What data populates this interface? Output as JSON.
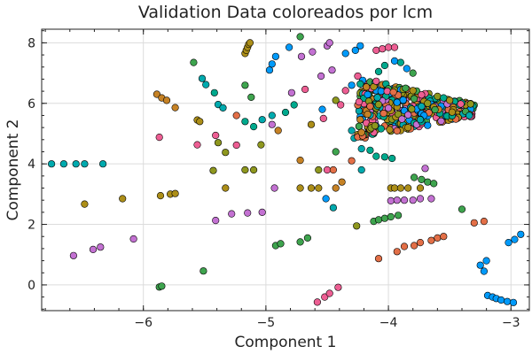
{
  "chart_data": {
    "type": "scatter",
    "title": "Validation Data coloreados por lcm",
    "xlabel": "Component 1",
    "ylabel": "Component 2",
    "xlim": [
      -6.83,
      -2.85
    ],
    "ylim": [
      -0.85,
      8.45
    ],
    "xticks": [
      -6,
      -5,
      -4,
      -3
    ],
    "yticks": [
      0,
      2,
      4,
      6,
      8
    ],
    "grid": true,
    "legend": "none",
    "palette": [
      "#009AFA",
      "#E36F47",
      "#3EA44E",
      "#C371D2",
      "#AC8E18",
      "#00AAAE",
      "#ED5E93",
      "#C68225",
      "#00A98D",
      "#8E971E"
    ],
    "points": [
      [
        -6.75,
        4.0,
        5
      ],
      [
        -6.65,
        4.0,
        5
      ],
      [
        -6.55,
        4.0,
        5
      ],
      [
        -6.48,
        4.0,
        5
      ],
      [
        -6.33,
        4.0,
        5
      ],
      [
        -6.57,
        0.97,
        3
      ],
      [
        -6.41,
        1.17,
        3
      ],
      [
        -6.35,
        1.25,
        3
      ],
      [
        -6.08,
        1.52,
        3
      ],
      [
        -6.48,
        2.67,
        4
      ],
      [
        -6.17,
        2.85,
        4
      ],
      [
        -5.89,
        6.3,
        7
      ],
      [
        -5.85,
        6.18,
        7
      ],
      [
        -5.81,
        6.1,
        7
      ],
      [
        -5.74,
        5.86,
        7
      ],
      [
        -5.87,
        4.88,
        6
      ],
      [
        -5.56,
        4.63,
        6
      ],
      [
        -5.86,
        2.95,
        4
      ],
      [
        -5.78,
        3.0,
        4
      ],
      [
        -5.74,
        3.02,
        4
      ],
      [
        -5.87,
        -0.07,
        2
      ],
      [
        -5.85,
        -0.04,
        2
      ],
      [
        -5.51,
        0.46,
        2
      ],
      [
        -5.59,
        7.35,
        2
      ],
      [
        -5.52,
        6.82,
        5
      ],
      [
        -5.49,
        6.62,
        5
      ],
      [
        -5.42,
        6.35,
        8
      ],
      [
        -5.56,
        5.45,
        4
      ],
      [
        -5.54,
        5.4,
        4
      ],
      [
        -5.39,
        5.96,
        5
      ],
      [
        -5.35,
        5.85,
        5
      ],
      [
        -5.41,
        4.94,
        6
      ],
      [
        -5.39,
        4.7,
        9
      ],
      [
        -5.33,
        4.38,
        9
      ],
      [
        -5.43,
        3.78,
        9
      ],
      [
        -5.33,
        3.2,
        4
      ],
      [
        -5.41,
        2.13,
        3
      ],
      [
        -5.28,
        2.35,
        3
      ],
      [
        -5.15,
        2.38,
        3
      ],
      [
        -5.03,
        2.4,
        3
      ],
      [
        -5.24,
        5.6,
        1
      ],
      [
        -5.17,
        5.4,
        8
      ],
      [
        -5.1,
        5.23,
        8
      ],
      [
        -5.24,
        4.62,
        6
      ],
      [
        -5.17,
        3.8,
        9
      ],
      [
        -5.1,
        3.8,
        9
      ],
      [
        -5.17,
        7.65,
        4
      ],
      [
        -5.16,
        7.75,
        4
      ],
      [
        -5.15,
        7.85,
        4
      ],
      [
        -5.14,
        7.95,
        4
      ],
      [
        -5.13,
        8.0,
        4
      ],
      [
        -5.17,
        6.6,
        2
      ],
      [
        -5.12,
        6.2,
        2
      ],
      [
        -5.03,
        5.46,
        5
      ],
      [
        -4.95,
        5.6,
        5
      ],
      [
        -4.95,
        5.3,
        3
      ],
      [
        -4.9,
        5.1,
        7
      ],
      [
        -5.04,
        4.63,
        9
      ],
      [
        -4.93,
        3.2,
        3
      ],
      [
        -4.92,
        1.3,
        2
      ],
      [
        -4.88,
        1.36,
        2
      ],
      [
        -4.97,
        7.1,
        0
      ],
      [
        -4.95,
        7.3,
        0
      ],
      [
        -4.92,
        7.55,
        0
      ],
      [
        -4.81,
        7.85,
        0
      ],
      [
        -4.72,
        8.2,
        2
      ],
      [
        -4.71,
        7.55,
        3
      ],
      [
        -4.84,
        5.7,
        8
      ],
      [
        -4.77,
        5.95,
        8
      ],
      [
        -4.72,
        4.12,
        7
      ],
      [
        -4.72,
        3.2,
        4
      ],
      [
        -4.63,
        3.2,
        4
      ],
      [
        -4.57,
        3.2,
        4
      ],
      [
        -4.72,
        1.42,
        2
      ],
      [
        -4.66,
        1.55,
        2
      ],
      [
        -4.79,
        6.35,
        3
      ],
      [
        -4.68,
        6.46,
        6
      ],
      [
        -4.63,
        5.3,
        4
      ],
      [
        -4.53,
        5.5,
        6
      ],
      [
        -4.62,
        7.7,
        3
      ],
      [
        -4.5,
        7.9,
        3
      ],
      [
        -4.48,
        8.0,
        3
      ],
      [
        -4.55,
        6.9,
        3
      ],
      [
        -4.46,
        7.1,
        3
      ],
      [
        -4.54,
        5.8,
        0
      ],
      [
        -4.43,
        6.1,
        9
      ],
      [
        -4.39,
        5.95,
        6
      ],
      [
        -4.57,
        3.8,
        9
      ],
      [
        -4.5,
        3.8,
        6
      ],
      [
        -4.45,
        3.8,
        1
      ],
      [
        -4.43,
        3.2,
        7
      ],
      [
        -4.38,
        3.4,
        7
      ],
      [
        -4.51,
        2.85,
        0
      ],
      [
        -4.45,
        2.55,
        5
      ],
      [
        -4.43,
        4.4,
        2
      ],
      [
        -4.58,
        -0.57,
        6
      ],
      [
        -4.52,
        -0.4,
        6
      ],
      [
        -4.48,
        -0.28,
        6
      ],
      [
        -4.41,
        -0.08,
        6
      ],
      [
        -4.35,
        6.42,
        6
      ],
      [
        -4.3,
        6.6,
        0
      ],
      [
        -4.35,
        7.65,
        0
      ],
      [
        -4.27,
        7.75,
        0
      ],
      [
        -4.23,
        7.9,
        0
      ],
      [
        -4.25,
        6.9,
        6
      ],
      [
        -4.3,
        5.1,
        5
      ],
      [
        -4.28,
        4.85,
        5
      ],
      [
        -4.23,
        5.5,
        1
      ],
      [
        -4.22,
        4.5,
        5
      ],
      [
        -4.26,
        1.95,
        9
      ],
      [
        -4.3,
        4.1,
        1
      ],
      [
        -4.22,
        3.8,
        5
      ],
      [
        -4.17,
        6.5,
        0
      ],
      [
        -4.15,
        6.2,
        3
      ],
      [
        -4.12,
        6.1,
        4
      ],
      [
        -4.14,
        5.55,
        1
      ],
      [
        -4.12,
        5.3,
        6
      ],
      [
        -4.15,
        4.45,
        8
      ],
      [
        -4.1,
        4.25,
        8
      ],
      [
        -4.03,
        4.23,
        8
      ],
      [
        -3.97,
        4.18,
        8
      ],
      [
        -4.12,
        2.1,
        2
      ],
      [
        -4.08,
        2.15,
        2
      ],
      [
        -4.03,
        2.2,
        2
      ],
      [
        -3.98,
        2.25,
        2
      ],
      [
        -3.92,
        2.3,
        2
      ],
      [
        -4.08,
        7.05,
        8
      ],
      [
        -4.03,
        7.25,
        8
      ],
      [
        -4.1,
        7.75,
        6
      ],
      [
        -4.05,
        7.8,
        6
      ],
      [
        -4.0,
        7.85,
        6
      ],
      [
        -3.95,
        7.85,
        6
      ],
      [
        -3.98,
        3.2,
        4
      ],
      [
        -3.95,
        3.2,
        4
      ],
      [
        -3.9,
        3.2,
        4
      ],
      [
        -3.84,
        3.2,
        4
      ],
      [
        -3.74,
        3.2,
        4
      ],
      [
        -3.98,
        2.78,
        3
      ],
      [
        -3.93,
        2.8,
        3
      ],
      [
        -3.87,
        2.8,
        3
      ],
      [
        -3.8,
        2.8,
        3
      ],
      [
        -3.74,
        2.85,
        3
      ],
      [
        -3.79,
        3.55,
        2
      ],
      [
        -3.73,
        3.48,
        2
      ],
      [
        -3.68,
        3.4,
        2
      ],
      [
        -3.63,
        3.35,
        2
      ],
      [
        -4.08,
        0.87,
        1
      ],
      [
        -3.93,
        1.1,
        1
      ],
      [
        -3.87,
        1.27,
        1
      ],
      [
        -3.79,
        1.3,
        1
      ],
      [
        -3.74,
        1.4,
        1
      ],
      [
        -3.65,
        1.47,
        1
      ],
      [
        -3.6,
        1.55,
        1
      ],
      [
        -3.55,
        1.6,
        1
      ],
      [
        -3.95,
        7.4,
        0
      ],
      [
        -3.9,
        7.35,
        8
      ],
      [
        -3.85,
        7.15,
        0
      ],
      [
        -3.8,
        7.0,
        2
      ],
      [
        -3.7,
        3.85,
        3
      ],
      [
        -3.65,
        2.85,
        3
      ],
      [
        -3.4,
        2.5,
        2
      ],
      [
        -3.3,
        2.05,
        1
      ],
      [
        -3.22,
        2.1,
        1
      ],
      [
        -3.25,
        0.65,
        0
      ],
      [
        -3.2,
        0.8,
        0
      ],
      [
        -3.22,
        0.45,
        0
      ],
      [
        -3.19,
        -0.35,
        0
      ],
      [
        -3.15,
        -0.4,
        0
      ],
      [
        -3.12,
        -0.45,
        0
      ],
      [
        -3.08,
        -0.5,
        0
      ],
      [
        -3.03,
        -0.55,
        0
      ],
      [
        -2.98,
        -0.58,
        0
      ],
      [
        -3.02,
        1.4,
        0
      ],
      [
        -2.97,
        1.5,
        0
      ],
      [
        -2.92,
        1.67,
        0
      ]
    ]
  }
}
